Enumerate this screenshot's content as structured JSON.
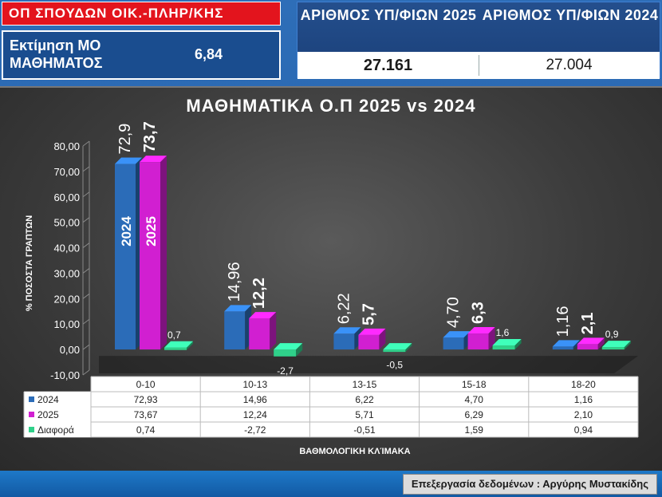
{
  "header": {
    "title": "ΟΠ ΣΠΟΥΔΩΝ ΟΙΚ.-ΠΛΗΡ/ΚΗΣ",
    "estimate_label": "Εκτίμηση ΜΟ ΜΑΘΗΜΑΤΟΣ",
    "estimate_value": "6,84"
  },
  "counts": {
    "head_2025": "ΑΡΙΘΜΟΣ ΥΠ/ΦΙΩΝ 2025",
    "head_2024": "ΑΡΙΘΜΟΣ ΥΠ/ΦΙΩΝ 2024",
    "value_2025": "27.161",
    "value_2024": "27.004"
  },
  "footer": {
    "credit": "Επεξεργασία δεδομένων : Αργύρης Μυστακίδης"
  },
  "chart_data": {
    "type": "bar",
    "title": "ΜΑΘΗΜΑΤΙΚΑ Ο.Π 2025 vs 2024",
    "xlabel": "ΒΑΘΜΟΛΟΓΙΚΗ ΚΛΊΜΑΚΑ",
    "ylabel": "% ΠΟΣΟΣΤΑ ΓΡΑΠΤΩΝ",
    "ylim": [
      -10,
      80
    ],
    "yticks": [
      "80,00",
      "70,00",
      "60,00",
      "50,00",
      "40,00",
      "30,00",
      "20,00",
      "10,00",
      "0,00",
      "-10,00"
    ],
    "categories": [
      "0-10",
      "10-13",
      "13-15",
      "15-18",
      "18-20"
    ],
    "series": [
      {
        "name": "2024",
        "color": "#2b6cb8",
        "values": [
          72.93,
          14.96,
          6.22,
          4.7,
          1.16
        ],
        "labels": [
          "72,9",
          "14,96",
          "6,22",
          "4,70",
          "1,16"
        ],
        "table": [
          "72,93",
          "14,96",
          "6,22",
          "4,70",
          "1,16"
        ]
      },
      {
        "name": "2025",
        "color": "#d11fd1",
        "values": [
          73.67,
          12.24,
          5.71,
          6.29,
          2.1
        ],
        "labels": [
          "73,7",
          "12,2",
          "5,7",
          "6,3",
          "2,1"
        ],
        "table": [
          "73,67",
          "12,24",
          "5,71",
          "6,29",
          "2,10"
        ]
      },
      {
        "name": "Διαφορά",
        "color": "#2fd18a",
        "values": [
          0.74,
          -2.72,
          -0.51,
          1.59,
          0.94
        ],
        "labels": [
          "0,7",
          "-2,7",
          "-0,5",
          "1,6",
          "0,9"
        ],
        "table": [
          "0,74",
          "-2,72",
          "-0,51",
          "1,59",
          "0,94"
        ]
      }
    ],
    "inbar_labels": [
      "2024",
      "2025"
    ]
  }
}
